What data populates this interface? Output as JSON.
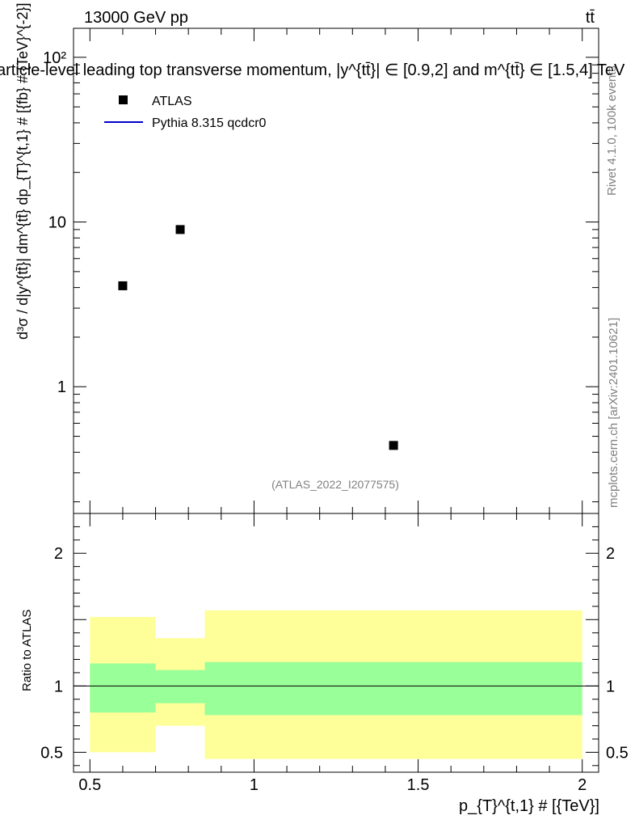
{
  "header": {
    "left": "13000 GeV pp",
    "right": "tt̄",
    "title": "article-level leading top transverse momentum, |y^{tt̄}| ∈ [0.9,2] and m^{tt̄} ∈ [1.5,4] TeV"
  },
  "side_labels": {
    "rivet": "Rivet 4.1.0,  100k events",
    "mcplots": "mcplots.cern.ch [arXiv:2401.10621]"
  },
  "watermark": "(ATLAS_2022_I2077575)",
  "colors": {
    "data": "#000000",
    "mc": "#0000cc",
    "band_inner": "#99ff99",
    "band_outer": "#ffff99"
  },
  "chart_data": [
    {
      "type": "scatter",
      "title": "article-level leading top transverse momentum, |y^{tt̄}| ∈ [0.9,2] and m^{tt̄} ∈ [1.5,4] TeV",
      "ylabel": "d³σ / d|y^{tt̄}| dm^{tt̄} dp_{T}^{t,1} # [{fb} # {TeV}^{-2}]",
      "yscale": "log",
      "ylim": [
        0.17,
        150
      ],
      "xlim": [
        0.45,
        2.05
      ],
      "y_ticks": [
        {
          "value": 1,
          "label": "1"
        },
        {
          "value": 10,
          "label": "10"
        },
        {
          "value": 100,
          "label": "10²"
        }
      ],
      "legend": [
        "ATLAS",
        "Pythia 8.315 qcdcr0"
      ],
      "legend_position": "top-left",
      "series": [
        {
          "name": "ATLAS",
          "x": [
            0.6,
            0.775,
            1.425
          ],
          "y": [
            4.1,
            9.0,
            0.44
          ]
        },
        {
          "name": "Pythia 8.315 qcdcr0",
          "x": [],
          "y": []
        }
      ]
    },
    {
      "type": "area",
      "ylabel": "Ratio to ATLAS",
      "xlabel": "p_{T}^{t,1} # [{TeV}]",
      "xlim": [
        0.45,
        2.05
      ],
      "ylim": [
        0.35,
        2.3
      ],
      "x_ticks": [
        {
          "value": 0.5,
          "label": "0.5"
        },
        {
          "value": 1,
          "label": "1"
        },
        {
          "value": 1.5,
          "label": "1.5"
        },
        {
          "value": 2,
          "label": "2"
        }
      ],
      "y_ticks": [
        {
          "value": 0.5,
          "label": "0.5"
        },
        {
          "value": 1,
          "label": "1"
        },
        {
          "value": 2,
          "label": "2"
        }
      ],
      "reference_line": 1,
      "bins": [
        {
          "x_low": 0.5,
          "x_high": 0.7,
          "inner_low": 0.8,
          "inner_high": 1.17,
          "outer_low": 0.5,
          "outer_high": 1.52
        },
        {
          "x_low": 0.7,
          "x_high": 0.85,
          "inner_low": 0.87,
          "inner_high": 1.12,
          "outer_low": 0.7,
          "outer_high": 1.36
        },
        {
          "x_low": 0.85,
          "x_high": 2.0,
          "inner_low": 0.78,
          "inner_high": 1.18,
          "outer_low": 0.45,
          "outer_high": 1.57
        }
      ]
    }
  ]
}
